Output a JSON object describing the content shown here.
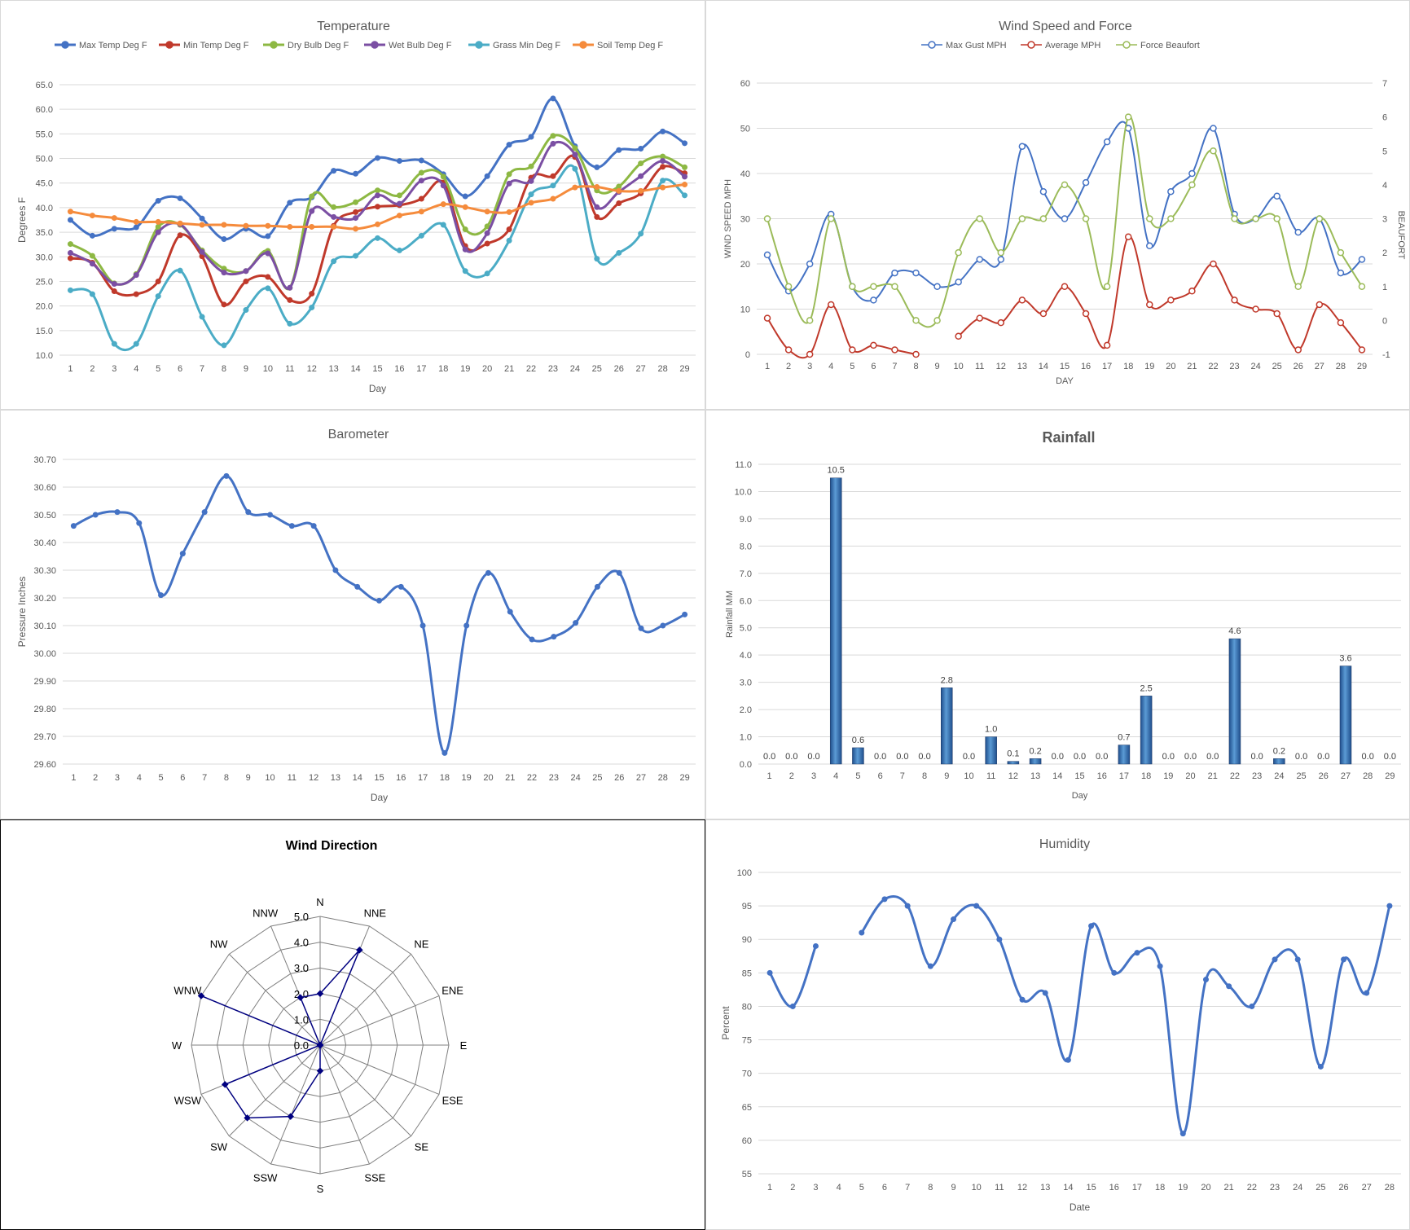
{
  "chart_data": [
    {
      "type": "line",
      "title": "Temperature",
      "xlabel": "Day",
      "ylabel": "Degrees F",
      "ylim": [
        10,
        65
      ],
      "yticks": [
        "10.0",
        "15.0",
        "20.0",
        "25.0",
        "30.0",
        "35.0",
        "40.0",
        "45.0",
        "50.0",
        "55.0",
        "60.0",
        "65.0"
      ],
      "categories": [
        "1",
        "2",
        "3",
        "4",
        "5",
        "6",
        "7",
        "8",
        "9",
        "10",
        "11",
        "12",
        "13",
        "14",
        "15",
        "16",
        "17",
        "18",
        "19",
        "20",
        "21",
        "22",
        "23",
        "24",
        "25",
        "26",
        "27",
        "28",
        "29"
      ],
      "legend_position": "top",
      "grid": true,
      "series": [
        {
          "name": "Max Temp Deg F",
          "color": "#4472c4",
          "values": [
            37.5,
            34.3,
            35.7,
            36.0,
            41.4,
            41.9,
            37.8,
            33.6,
            35.7,
            34.2,
            41.0,
            42.1,
            47.5,
            46.9,
            50.1,
            49.5,
            49.6,
            46.8,
            42.3,
            46.4,
            52.8,
            54.4,
            62.2,
            52.5,
            48.2,
            51.7,
            52.0,
            55.5,
            53.1
          ]
        },
        {
          "name": "Min Temp Deg F",
          "color": "#c0392b",
          "values": [
            29.7,
            28.8,
            23.0,
            22.4,
            25.0,
            34.4,
            30.1,
            20.3,
            25.0,
            25.9,
            21.2,
            22.5,
            36.3,
            39.1,
            40.2,
            40.5,
            41.8,
            45.1,
            32.2,
            32.7,
            35.6,
            46.1,
            46.4,
            50.3,
            38.1,
            40.9,
            42.9,
            48.3,
            47.0
          ]
        },
        {
          "name": "Dry Bulb Deg F",
          "color": "#8db843",
          "values": [
            32.6,
            30.2,
            24.6,
            26.5,
            36.1,
            36.5,
            31.3,
            27.6,
            27.1,
            31.2,
            23.7,
            42.3,
            40.1,
            41.1,
            43.5,
            42.5,
            47.1,
            46.3,
            35.6,
            36.2,
            46.8,
            48.4,
            54.6,
            52.1,
            43.5,
            44.3,
            49.0,
            50.4,
            48.2
          ]
        },
        {
          "name": "Wet Bulb Deg F",
          "color": "#7b4fa3",
          "values": [
            30.8,
            28.6,
            24.5,
            26.3,
            35.0,
            36.6,
            31.0,
            26.8,
            27.1,
            30.7,
            23.7,
            39.3,
            38.1,
            37.9,
            42.5,
            40.8,
            45.5,
            44.5,
            31.5,
            34.8,
            44.9,
            45.4,
            53.0,
            50.8,
            40.1,
            43.2,
            46.4,
            49.5,
            46.3
          ]
        },
        {
          "name": "Grass Min Deg F",
          "color": "#4bacc6",
          "values": [
            23.2,
            22.4,
            12.3,
            12.3,
            22.0,
            27.2,
            17.8,
            12.0,
            19.2,
            23.6,
            16.4,
            19.7,
            29.1,
            30.2,
            33.8,
            31.3,
            34.3,
            36.5,
            27.1,
            26.6,
            33.3,
            42.7,
            44.5,
            47.9,
            29.6,
            30.8,
            34.7,
            45.5,
            42.5
          ]
        },
        {
          "name": "Soil Temp Deg F",
          "color": "#f58b3c",
          "values": [
            39.2,
            38.4,
            37.9,
            37.1,
            37.1,
            36.8,
            36.5,
            36.5,
            36.3,
            36.3,
            36.1,
            36.1,
            36.1,
            35.7,
            36.6,
            38.4,
            39.2,
            40.7,
            40.1,
            39.2,
            39.1,
            41.0,
            41.8,
            44.1,
            44.2,
            43.4,
            43.4,
            44.1,
            44.7
          ]
        }
      ]
    },
    {
      "type": "line",
      "title": "Wind Speed and Force",
      "xlabel": "DAY",
      "ylabel": "WIND SPEED MPH",
      "y2label": "BEAUFORT",
      "ylim": [
        0,
        60
      ],
      "y2lim": [
        -1,
        7
      ],
      "yticks": [
        "0",
        "10",
        "20",
        "30",
        "40",
        "50",
        "60"
      ],
      "y2ticks": [
        "-1",
        "0",
        "1",
        "2",
        "3",
        "4",
        "5",
        "6",
        "7"
      ],
      "categories": [
        "1",
        "2",
        "3",
        "4",
        "5",
        "6",
        "7",
        "8",
        "9",
        "10",
        "11",
        "12",
        "13",
        "14",
        "15",
        "16",
        "17",
        "18",
        "19",
        "20",
        "21",
        "22",
        "23",
        "24",
        "25",
        "26",
        "27",
        "28",
        "29"
      ],
      "legend_position": "top",
      "grid": true,
      "series": [
        {
          "name": "Max Gust MPH",
          "color": "#4472c4",
          "axis": "left",
          "values": [
            22,
            14,
            20,
            31,
            15,
            12,
            18,
            18,
            15,
            16,
            21,
            21,
            46,
            36,
            30,
            38,
            47,
            50,
            24,
            36,
            40,
            50,
            31,
            30,
            35,
            27,
            30,
            18,
            21
          ]
        },
        {
          "name": "Average MPH",
          "color": "#c0392b",
          "axis": "left",
          "values": [
            8,
            1,
            0,
            11,
            1,
            2,
            1,
            0,
            null,
            4,
            8,
            7,
            12,
            9,
            15,
            9,
            2,
            26,
            11,
            12,
            14,
            20,
            12,
            10,
            9,
            1,
            11,
            7,
            1
          ]
        },
        {
          "name": "Force Beaufort",
          "color": "#9bbb59",
          "axis": "right",
          "values": [
            3,
            1,
            0,
            3,
            1,
            1,
            1,
            0,
            0,
            2,
            3,
            2,
            3,
            3,
            4,
            3,
            1,
            6,
            3,
            3,
            4,
            5,
            3,
            3,
            3,
            1,
            3,
            2,
            1
          ]
        }
      ]
    },
    {
      "type": "line",
      "title": "Barometer",
      "xlabel": "Day",
      "ylabel": "Pressure Inches",
      "ylim": [
        29.6,
        30.7
      ],
      "yticks": [
        "29.60",
        "29.70",
        "29.80",
        "29.90",
        "30.00",
        "30.10",
        "30.20",
        "30.30",
        "30.40",
        "30.50",
        "30.60",
        "30.70"
      ],
      "categories": [
        "1",
        "2",
        "3",
        "4",
        "5",
        "6",
        "7",
        "8",
        "9",
        "10",
        "11",
        "12",
        "13",
        "14",
        "15",
        "16",
        "17",
        "18",
        "19",
        "20",
        "21",
        "22",
        "23",
        "24",
        "25",
        "26",
        "27",
        "28",
        "29"
      ],
      "grid": true,
      "series": [
        {
          "color": "#4472c4",
          "values": [
            30.46,
            30.5,
            30.51,
            30.47,
            30.21,
            30.36,
            30.51,
            30.64,
            30.51,
            30.5,
            30.46,
            30.46,
            30.3,
            30.24,
            30.19,
            30.24,
            30.1,
            29.64,
            30.1,
            30.29,
            30.15,
            30.05,
            30.06,
            30.11,
            30.24,
            30.29,
            30.09,
            30.1,
            30.14
          ]
        }
      ]
    },
    {
      "type": "bar",
      "title": "Rainfall",
      "xlabel": "Day",
      "ylabel": "Rainfall MM",
      "ylim": [
        0,
        11
      ],
      "yticks": [
        "0.0",
        "1.0",
        "2.0",
        "3.0",
        "4.0",
        "5.0",
        "6.0",
        "7.0",
        "8.0",
        "9.0",
        "10.0",
        "11.0"
      ],
      "categories": [
        "1",
        "2",
        "3",
        "4",
        "5",
        "6",
        "7",
        "8",
        "9",
        "10",
        "11",
        "12",
        "13",
        "14",
        "15",
        "16",
        "17",
        "18",
        "19",
        "20",
        "21",
        "22",
        "23",
        "24",
        "25",
        "26",
        "27",
        "28",
        "29"
      ],
      "grid": true,
      "values": [
        0,
        0,
        0,
        10.5,
        0.6,
        0,
        0,
        0,
        2.8,
        0,
        1.0,
        0.1,
        0.2,
        0,
        0,
        0,
        0.7,
        2.5,
        0,
        0,
        0,
        4.6,
        0,
        0.2,
        0,
        0,
        3.6,
        0,
        0
      ],
      "data_labels": [
        "0.0",
        "0.0",
        "0.0",
        "10.5",
        "0.6",
        "0.0",
        "0.0",
        "0.0",
        "2.8",
        "0.0",
        "1.0",
        "0.1",
        "0.2",
        "0.0",
        "0.0",
        "0.0",
        "0.7",
        "2.5",
        "0.0",
        "0.0",
        "0.0",
        "4.6",
        "0.0",
        "0.2",
        "0.0",
        "0.0",
        "3.6",
        "0.0",
        "0.0"
      ],
      "color": "#2e75b6"
    },
    {
      "type": "radar",
      "title": "Wind Direction",
      "rlim": [
        0,
        5
      ],
      "rticks": [
        "0.0",
        "1.0",
        "2.0",
        "3.0",
        "4.0",
        "5.0"
      ],
      "directions": [
        "N",
        "NNE",
        "NE",
        "ENE",
        "E",
        "ESE",
        "SE",
        "SSE",
        "S",
        "SSW",
        "SW",
        "WSW",
        "W",
        "WNW",
        "NW",
        "NNW"
      ],
      "values": [
        2,
        4,
        0,
        0,
        0,
        0,
        0,
        0,
        1,
        3,
        4,
        4,
        0,
        5,
        0,
        2
      ],
      "color": "#000080"
    },
    {
      "type": "line",
      "title": "Humidity",
      "xlabel": "Date",
      "ylabel": "Percent",
      "ylim": [
        55,
        100
      ],
      "yticks": [
        "55",
        "60",
        "65",
        "70",
        "75",
        "80",
        "85",
        "90",
        "95",
        "100"
      ],
      "categories": [
        "1",
        "2",
        "3",
        "4",
        "5",
        "6",
        "7",
        "8",
        "9",
        "10",
        "11",
        "12",
        "13",
        "14",
        "15",
        "16",
        "17",
        "18",
        "19",
        "20",
        "21",
        "22",
        "23",
        "24",
        "25",
        "26",
        "27",
        "28"
      ],
      "grid": true,
      "series": [
        {
          "color": "#4472c4",
          "values": [
            85,
            80,
            89,
            null,
            91,
            96,
            95,
            86,
            93,
            95,
            90,
            81,
            82,
            72,
            92,
            85,
            88,
            86,
            61,
            84,
            83,
            80,
            87,
            87,
            71,
            87,
            82,
            95
          ]
        }
      ]
    }
  ]
}
